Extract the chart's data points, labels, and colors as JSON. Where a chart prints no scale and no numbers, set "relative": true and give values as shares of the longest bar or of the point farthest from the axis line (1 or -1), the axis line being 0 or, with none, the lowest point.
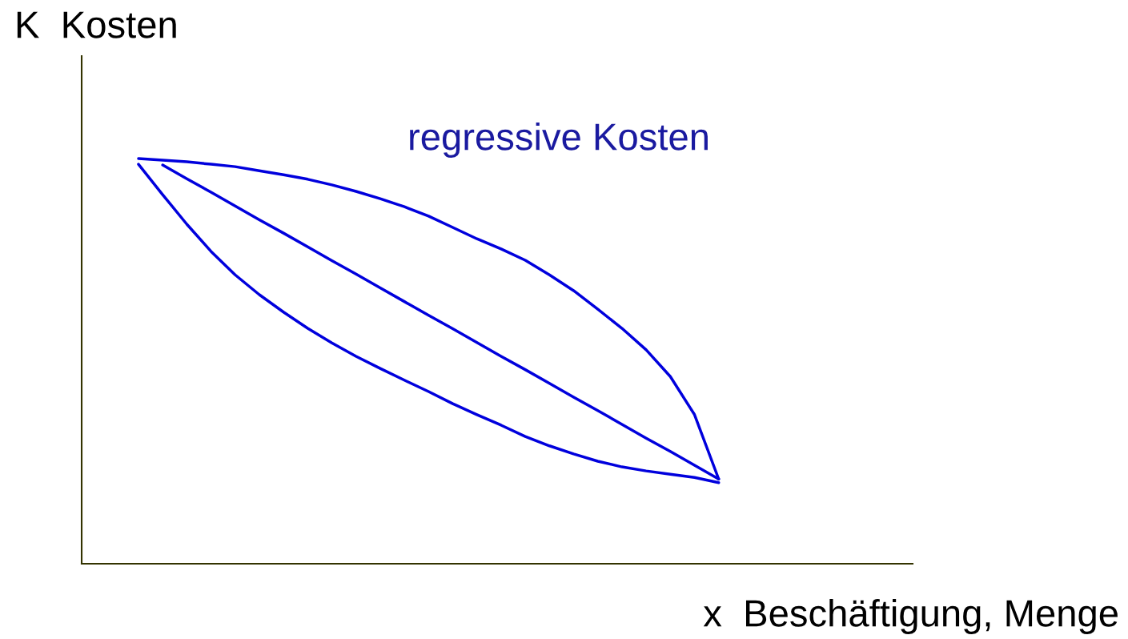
{
  "chart_data": {
    "type": "line",
    "relative": true,
    "xlabel": "x  Beschäftigung, Menge",
    "ylabel": "K  Kosten",
    "annotations": [
      "regressive Kosten"
    ],
    "tick_labels": false,
    "marker": "none",
    "line_style": "solid",
    "categories": [
      null,
      null,
      null,
      null,
      null,
      null,
      null,
      null,
      null,
      null,
      null,
      null,
      null,
      null,
      null,
      null,
      null,
      null,
      null,
      null,
      null,
      null,
      null,
      null,
      null
    ],
    "series": [
      {
        "color": "#0000dd",
        "values": [
          1.0,
          0.996,
          0.992,
          0.986,
          0.98,
          0.97,
          0.96,
          0.949,
          0.935,
          0.919,
          0.901,
          0.881,
          0.858,
          0.83,
          0.802,
          0.777,
          0.749,
          0.713,
          0.674,
          0.628,
          0.581,
          0.528,
          0.462,
          0.368,
          0.209
        ]
      },
      {
        "color": "#0000dd",
        "values": [
          0.986,
          0.911,
          0.838,
          0.771,
          0.713,
          0.664,
          0.621,
          0.581,
          0.545,
          0.512,
          0.482,
          0.453,
          0.425,
          0.395,
          0.368,
          0.342,
          0.314,
          0.291,
          0.271,
          0.253,
          0.239,
          0.229,
          0.221,
          0.213,
          0.2
        ]
      },
      {
        "color": "#0000dd",
        "values": [
          null,
          0.984,
          0.95,
          0.917,
          0.883,
          0.849,
          0.816,
          0.782,
          0.748,
          0.715,
          0.681,
          0.647,
          0.613,
          0.58,
          0.546,
          0.512,
          0.479,
          0.445,
          0.411,
          0.378,
          0.344,
          0.31,
          0.277,
          0.243,
          0.209
        ]
      }
    ]
  }
}
